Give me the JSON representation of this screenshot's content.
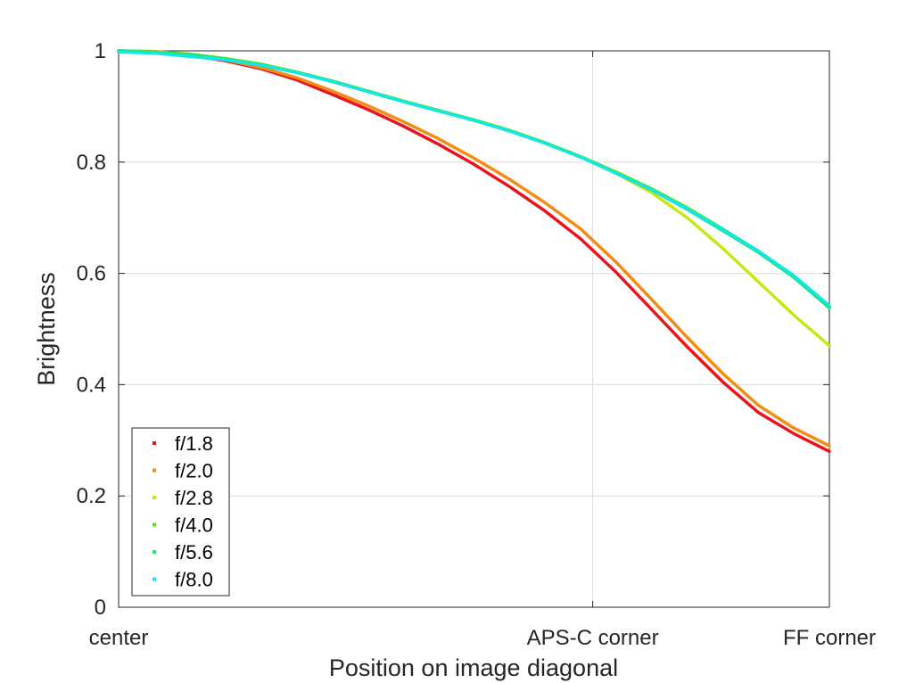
{
  "chart_data": {
    "type": "line",
    "title": "",
    "xlabel": "Position on image diagonal",
    "ylabel": "Brightness",
    "xlim": [
      0,
      1
    ],
    "ylim": [
      0,
      1
    ],
    "x_ticks": [
      {
        "value": 0,
        "label": "center"
      },
      {
        "value": 0.667,
        "label": "APS-C corner"
      },
      {
        "value": 1,
        "label": "FF corner"
      }
    ],
    "y_ticks": [
      {
        "value": 0,
        "label": "0"
      },
      {
        "value": 0.2,
        "label": "0.2"
      },
      {
        "value": 0.4,
        "label": "0.4"
      },
      {
        "value": 0.6,
        "label": "0.6"
      },
      {
        "value": 0.8,
        "label": "0.8"
      },
      {
        "value": 1,
        "label": "1"
      }
    ],
    "grid": true,
    "legend_position": "bottom-left",
    "series": [
      {
        "name": "f/1.8",
        "color": "#e8141c",
        "x": [
          0,
          0.05,
          0.1,
          0.15,
          0.2,
          0.25,
          0.3,
          0.35,
          0.4,
          0.45,
          0.5,
          0.55,
          0.6,
          0.65,
          0.7,
          0.75,
          0.8,
          0.85,
          0.9,
          0.95,
          1.0
        ],
        "y": [
          1.0,
          0.998,
          0.992,
          0.982,
          0.968,
          0.948,
          0.922,
          0.895,
          0.865,
          0.832,
          0.796,
          0.756,
          0.712,
          0.662,
          0.602,
          0.535,
          0.468,
          0.405,
          0.35,
          0.312,
          0.28
        ]
      },
      {
        "name": "f/2.0",
        "color": "#f28c14",
        "x": [
          0,
          0.05,
          0.1,
          0.15,
          0.2,
          0.25,
          0.3,
          0.35,
          0.4,
          0.45,
          0.5,
          0.55,
          0.6,
          0.65,
          0.7,
          0.75,
          0.8,
          0.85,
          0.9,
          0.95,
          1.0
        ],
        "y": [
          1.0,
          0.999,
          0.994,
          0.984,
          0.97,
          0.952,
          0.928,
          0.902,
          0.873,
          0.842,
          0.807,
          0.769,
          0.727,
          0.68,
          0.62,
          0.553,
          0.485,
          0.42,
          0.363,
          0.322,
          0.29
        ]
      },
      {
        "name": "f/2.8",
        "color": "#c8e614",
        "x": [
          0,
          0.05,
          0.1,
          0.15,
          0.2,
          0.25,
          0.3,
          0.35,
          0.4,
          0.45,
          0.5,
          0.55,
          0.6,
          0.65,
          0.7,
          0.75,
          0.8,
          0.85,
          0.9,
          0.95,
          1.0
        ],
        "y": [
          1.0,
          0.998,
          0.994,
          0.986,
          0.976,
          0.962,
          0.946,
          0.928,
          0.91,
          0.893,
          0.876,
          0.857,
          0.835,
          0.81,
          0.78,
          0.745,
          0.7,
          0.645,
          0.585,
          0.525,
          0.47
        ]
      },
      {
        "name": "f/4.0",
        "color": "#50e614",
        "x": [
          0,
          0.05,
          0.1,
          0.15,
          0.2,
          0.25,
          0.3,
          0.35,
          0.4,
          0.45,
          0.5,
          0.55,
          0.6,
          0.65,
          0.7,
          0.75,
          0.8,
          0.85,
          0.9,
          0.95,
          1.0
        ],
        "y": [
          1.0,
          0.998,
          0.994,
          0.986,
          0.976,
          0.962,
          0.946,
          0.928,
          0.91,
          0.893,
          0.876,
          0.857,
          0.835,
          0.81,
          0.782,
          0.752,
          0.718,
          0.68,
          0.64,
          0.595,
          0.54
        ]
      },
      {
        "name": "f/5.6",
        "color": "#14e678",
        "x": [
          0,
          0.05,
          0.1,
          0.15,
          0.2,
          0.25,
          0.3,
          0.35,
          0.4,
          0.45,
          0.5,
          0.55,
          0.6,
          0.65,
          0.7,
          0.75,
          0.8,
          0.85,
          0.9,
          0.95,
          1.0
        ],
        "y": [
          1.0,
          0.997,
          0.993,
          0.985,
          0.975,
          0.961,
          0.945,
          0.927,
          0.909,
          0.892,
          0.875,
          0.856,
          0.834,
          0.809,
          0.78,
          0.75,
          0.715,
          0.677,
          0.638,
          0.593,
          0.538
        ]
      },
      {
        "name": "f/8.0",
        "color": "#14e6e6",
        "x": [
          0,
          0.05,
          0.1,
          0.15,
          0.2,
          0.25,
          0.3,
          0.35,
          0.4,
          0.45,
          0.5,
          0.55,
          0.6,
          0.65,
          0.7,
          0.75,
          0.8,
          0.85,
          0.9,
          0.95,
          1.0
        ],
        "y": [
          0.998,
          0.996,
          0.99,
          0.984,
          0.974,
          0.961,
          0.945,
          0.927,
          0.909,
          0.892,
          0.875,
          0.856,
          0.834,
          0.809,
          0.78,
          0.75,
          0.716,
          0.679,
          0.64,
          0.596,
          0.542
        ]
      }
    ]
  }
}
